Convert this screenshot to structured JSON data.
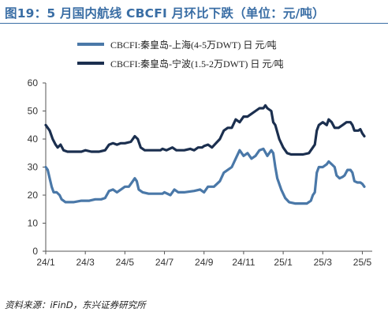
{
  "title": "图19：5 月国内航线 CBCFI 月环比下跌（单位：元/吨）",
  "source": "资料来源：iFinD，东兴证券研究所",
  "chart_data": {
    "type": "line",
    "ylim": [
      0,
      60
    ],
    "yticks": [
      0,
      10,
      20,
      30,
      40,
      50,
      60
    ],
    "xlim": [
      0,
      16.5
    ],
    "xticks": [
      {
        "x": 0,
        "label": "24/1"
      },
      {
        "x": 2,
        "label": "24/3"
      },
      {
        "x": 4,
        "label": "24/5"
      },
      {
        "x": 6,
        "label": "24/7"
      },
      {
        "x": 8,
        "label": "24/9"
      },
      {
        "x": 10,
        "label": "24/11"
      },
      {
        "x": 12,
        "label": "25/1"
      },
      {
        "x": 14,
        "label": "25/3"
      },
      {
        "x": 16,
        "label": "25/5"
      }
    ],
    "grid": false,
    "legend_position": "top-left",
    "series": [
      {
        "name": "CBCFI:秦皇岛-上海(4-5万DWT)  日 元/吨",
        "color": "#4a78a8",
        "points": [
          [
            0,
            30
          ],
          [
            0.1,
            29
          ],
          [
            0.2,
            26
          ],
          [
            0.3,
            23
          ],
          [
            0.4,
            21
          ],
          [
            0.55,
            21
          ],
          [
            0.7,
            20
          ],
          [
            0.8,
            18.5
          ],
          [
            1.0,
            17.5
          ],
          [
            1.4,
            17.5
          ],
          [
            1.8,
            18
          ],
          [
            2.2,
            18
          ],
          [
            2.5,
            18.5
          ],
          [
            2.8,
            18.5
          ],
          [
            3.0,
            19
          ],
          [
            3.2,
            21.5
          ],
          [
            3.4,
            22
          ],
          [
            3.6,
            21
          ],
          [
            3.8,
            22
          ],
          [
            4.0,
            23
          ],
          [
            4.2,
            23
          ],
          [
            4.4,
            25
          ],
          [
            4.5,
            26
          ],
          [
            4.6,
            25
          ],
          [
            4.7,
            22
          ],
          [
            4.9,
            21
          ],
          [
            5.2,
            20.5
          ],
          [
            5.5,
            20.5
          ],
          [
            5.9,
            20.5
          ],
          [
            6.0,
            21
          ],
          [
            6.3,
            20
          ],
          [
            6.5,
            22
          ],
          [
            6.7,
            21
          ],
          [
            7.0,
            21
          ],
          [
            7.5,
            21.5
          ],
          [
            7.8,
            22
          ],
          [
            8.0,
            21
          ],
          [
            8.2,
            23
          ],
          [
            8.5,
            23
          ],
          [
            8.8,
            25
          ],
          [
            9.0,
            28
          ],
          [
            9.2,
            29
          ],
          [
            9.4,
            30
          ],
          [
            9.6,
            33
          ],
          [
            9.8,
            36
          ],
          [
            10.0,
            34
          ],
          [
            10.2,
            35
          ],
          [
            10.4,
            33
          ],
          [
            10.6,
            34
          ],
          [
            10.8,
            36
          ],
          [
            11.0,
            36.5
          ],
          [
            11.2,
            34
          ],
          [
            11.4,
            36
          ],
          [
            11.5,
            35
          ],
          [
            11.6,
            30
          ],
          [
            11.7,
            26
          ],
          [
            11.9,
            22
          ],
          [
            12.1,
            19
          ],
          [
            12.3,
            17.5
          ],
          [
            12.6,
            17
          ],
          [
            13.0,
            17
          ],
          [
            13.2,
            17
          ],
          [
            13.4,
            18
          ],
          [
            13.5,
            20
          ],
          [
            13.6,
            21
          ],
          [
            13.7,
            28
          ],
          [
            13.8,
            30
          ],
          [
            14.0,
            30
          ],
          [
            14.2,
            31
          ],
          [
            14.3,
            32
          ],
          [
            14.45,
            31
          ],
          [
            14.6,
            30
          ],
          [
            14.7,
            27
          ],
          [
            14.85,
            26
          ],
          [
            15.0,
            26.5
          ],
          [
            15.1,
            27
          ],
          [
            15.25,
            29
          ],
          [
            15.4,
            29
          ],
          [
            15.5,
            28
          ],
          [
            15.6,
            25
          ],
          [
            15.75,
            24.5
          ],
          [
            15.9,
            24.5
          ],
          [
            16.0,
            24
          ],
          [
            16.1,
            23
          ]
        ]
      },
      {
        "name": "CBCFI:秦皇岛-宁波(1.5-2万DWT)  日 元/吨",
        "color": "#1b2f4f",
        "points": [
          [
            0,
            45
          ],
          [
            0.1,
            44
          ],
          [
            0.2,
            43
          ],
          [
            0.35,
            40
          ],
          [
            0.5,
            38
          ],
          [
            0.6,
            37
          ],
          [
            0.75,
            38
          ],
          [
            0.9,
            36
          ],
          [
            1.1,
            35.5
          ],
          [
            1.8,
            35.5
          ],
          [
            2.0,
            36
          ],
          [
            2.3,
            35.5
          ],
          [
            2.7,
            35.5
          ],
          [
            3.0,
            36
          ],
          [
            3.2,
            38
          ],
          [
            3.4,
            38.5
          ],
          [
            3.6,
            38
          ],
          [
            3.8,
            38.5
          ],
          [
            4.0,
            38.5
          ],
          [
            4.3,
            39
          ],
          [
            4.5,
            41
          ],
          [
            4.65,
            40
          ],
          [
            4.8,
            37
          ],
          [
            5.0,
            36
          ],
          [
            5.5,
            36
          ],
          [
            5.8,
            36
          ],
          [
            5.9,
            36.5
          ],
          [
            6.1,
            36
          ],
          [
            6.4,
            37
          ],
          [
            6.6,
            36
          ],
          [
            7.0,
            36
          ],
          [
            7.3,
            36.5
          ],
          [
            7.5,
            36
          ],
          [
            7.7,
            37
          ],
          [
            7.9,
            37
          ],
          [
            8.0,
            37.5
          ],
          [
            8.2,
            38
          ],
          [
            8.4,
            37
          ],
          [
            8.6,
            38.5
          ],
          [
            8.8,
            40
          ],
          [
            9.0,
            43
          ],
          [
            9.2,
            44
          ],
          [
            9.4,
            44
          ],
          [
            9.6,
            47
          ],
          [
            9.8,
            46
          ],
          [
            10.0,
            48
          ],
          [
            10.2,
            48
          ],
          [
            10.4,
            49
          ],
          [
            10.6,
            50
          ],
          [
            10.8,
            51
          ],
          [
            11.0,
            51
          ],
          [
            11.1,
            52
          ],
          [
            11.2,
            51
          ],
          [
            11.4,
            50
          ],
          [
            11.5,
            46
          ],
          [
            11.6,
            45
          ],
          [
            11.8,
            40
          ],
          [
            12.0,
            37
          ],
          [
            12.2,
            35
          ],
          [
            12.4,
            34.5
          ],
          [
            12.8,
            34.5
          ],
          [
            13.0,
            34.5
          ],
          [
            13.3,
            35
          ],
          [
            13.5,
            37
          ],
          [
            13.6,
            38
          ],
          [
            13.7,
            43
          ],
          [
            13.8,
            45
          ],
          [
            14.0,
            46
          ],
          [
            14.2,
            45
          ],
          [
            14.3,
            47
          ],
          [
            14.45,
            46
          ],
          [
            14.6,
            44
          ],
          [
            14.8,
            44
          ],
          [
            15.0,
            45
          ],
          [
            15.2,
            46
          ],
          [
            15.4,
            46
          ],
          [
            15.5,
            45
          ],
          [
            15.6,
            43
          ],
          [
            15.8,
            43
          ],
          [
            15.9,
            43.5
          ],
          [
            16.0,
            42
          ],
          [
            16.1,
            41
          ]
        ]
      }
    ]
  }
}
